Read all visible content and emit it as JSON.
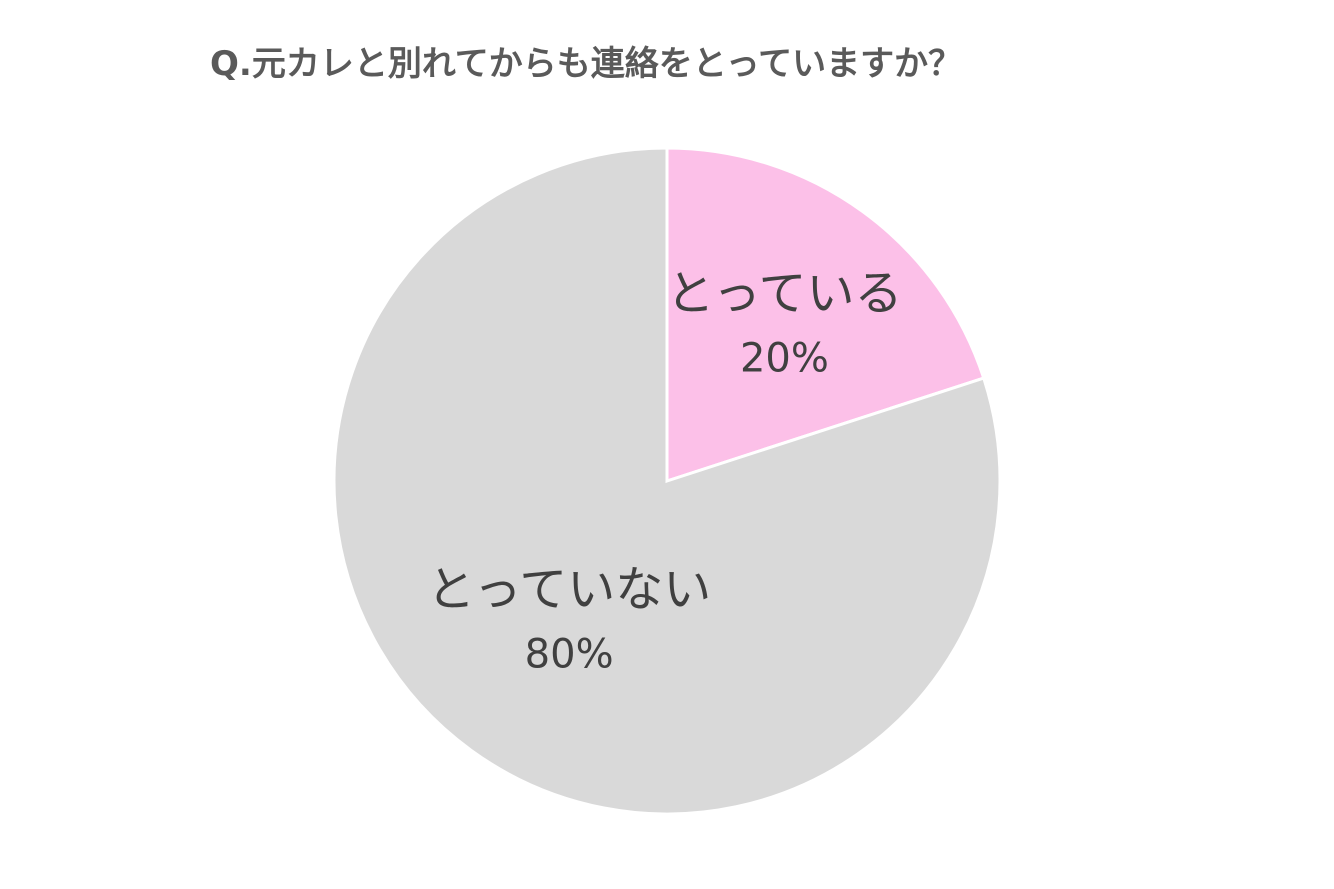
{
  "chart_data": {
    "type": "pie",
    "title": "Q.元カレと別れてからも連絡をとっていますか？",
    "slices": [
      {
        "label": "とっている",
        "value": 20,
        "value_label": "20%",
        "color": "#fcc0e8"
      },
      {
        "label": "とっていない",
        "value": 80,
        "value_label": "80%",
        "color": "#d9d9d9"
      }
    ],
    "start_angle": "12 o'clock",
    "direction": "clockwise",
    "slice_border_color": "#ffffff",
    "legend": "none"
  }
}
